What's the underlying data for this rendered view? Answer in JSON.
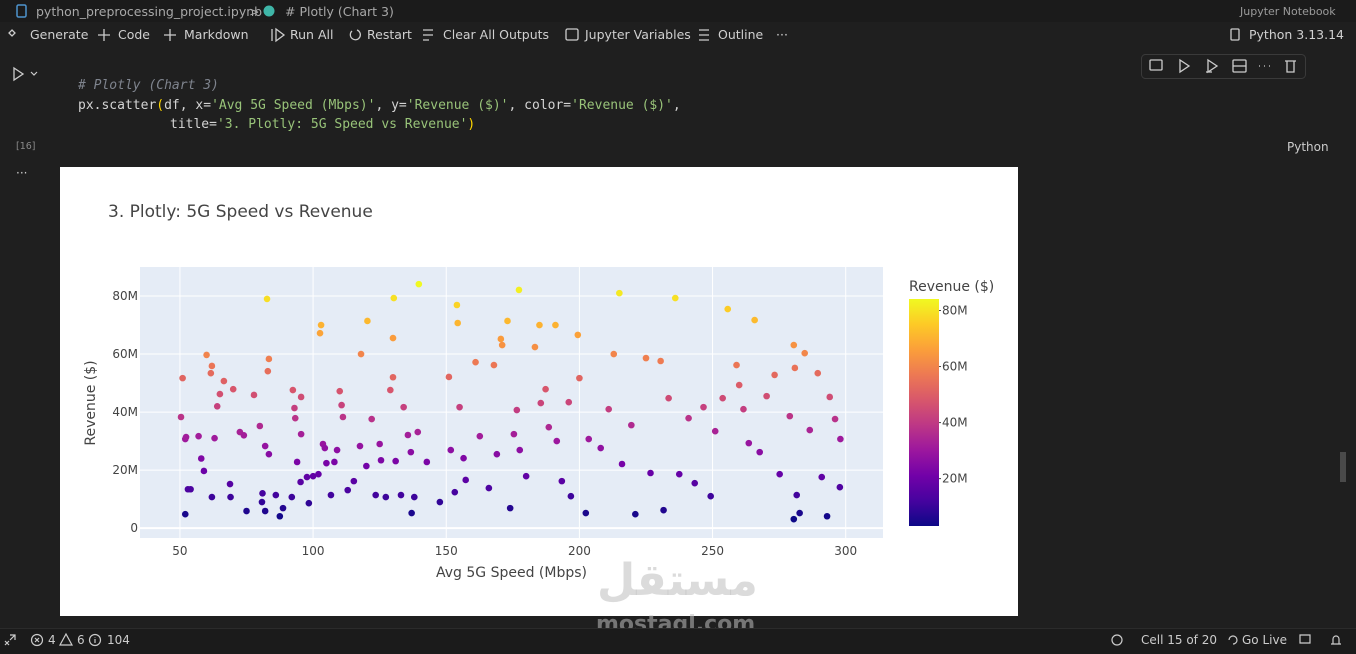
{
  "tab": {
    "file": "python_preprocessing_project.ipynb",
    "separator": ">",
    "cell": "# Plotly (Chart 3)",
    "app": "Jupyter Notebook"
  },
  "toolbar": {
    "items": [
      "Generate",
      "Code",
      "Markdown",
      "Run All",
      "Restart",
      "Clear All Outputs",
      "Jupyter Variables",
      "Outline",
      "···"
    ],
    "kernel": "Python 3.13.14"
  },
  "code": {
    "lines": [
      [
        {
          "text": "# Plotly (Chart 3)",
          "color": "#7f848e"
        }
      ],
      [
        {
          "text": "px.scatter",
          "color": "#d4d4d4"
        },
        {
          "text": "(",
          "color": "#ffd700"
        },
        {
          "text": "df, x=",
          "color": "#d4d4d4"
        },
        {
          "text": "'Avg 5G Speed (Mbps)'",
          "color": "#98c379"
        },
        {
          "text": ", y=",
          "color": "#d4d4d4"
        },
        {
          "text": "'Revenue ($)'",
          "color": "#98c379"
        },
        {
          "text": ", color=",
          "color": "#d4d4d4"
        },
        {
          "text": "'Revenue ($)'",
          "color": "#98c379"
        },
        {
          "text": ",",
          "color": "#d4d4d4"
        }
      ],
      [
        {
          "text": "title=",
          "color": "#d4d4d4"
        },
        {
          "text": "'3. Plotly: 5G Speed vs Revenue'",
          "color": "#98c379"
        },
        {
          "text": ")",
          "color": "#ffd700"
        }
      ]
    ]
  },
  "cell": {
    "count": "[16]",
    "language": "Python",
    "more": "···"
  },
  "chart_data": {
    "type": "scatter",
    "title": "3. Plotly: 5G Speed vs Revenue",
    "x_label": "Avg 5G Speed (Mbps)",
    "y_label": "Revenue ($)",
    "xlim": [
      35,
      314
    ],
    "xticks": [
      50,
      100,
      150,
      200,
      250,
      300
    ],
    "ylim": [
      -3400000.0,
      90000000.0
    ],
    "yticks": [
      0,
      {
        "value": 20000000,
        "label": "20M"
      },
      {
        "value": 40000000,
        "label": "40M"
      },
      {
        "value": 60000000,
        "label": "60M"
      },
      {
        "value": 80000000,
        "label": "80M"
      }
    ],
    "grid": true,
    "colorscale": [
      "#0d0887",
      "#46039f",
      "#7201a8",
      "#9c179e",
      "#bd3786",
      "#d8576b",
      "#ed7953",
      "#fb9f3a",
      "#fdca26",
      "#f0f921"
    ],
    "colorbar": {
      "title": "Revenue ($)",
      "lim": [
        3100000.0,
        84100000.0
      ],
      "ticks": [
        {
          "value": 20000000,
          "label": "20M"
        },
        {
          "value": 40000000,
          "label": "40M"
        },
        {
          "value": 60000000,
          "label": "60M"
        },
        {
          "value": 80000000,
          "label": "80M"
        }
      ]
    },
    "x": [
      50.4,
      51,
      52,
      52.3,
      53,
      54,
      52,
      57,
      58,
      59,
      60,
      62,
      61.6,
      62,
      63,
      64,
      65,
      66.5,
      68.8,
      69,
      70,
      72.5,
      74,
      75,
      77.8,
      80,
      80.8,
      81,
      82,
      82.7,
      83,
      83.4,
      83.4,
      82,
      86,
      87.5,
      88.7,
      92,
      92.4,
      93,
      93.3,
      95.5,
      95.5,
      94,
      95.3,
      97.7,
      98.4,
      100,
      102,
      102.6,
      103,
      103.7,
      104.4,
      105,
      106.7,
      108,
      109,
      110,
      110.7,
      111.2,
      113,
      115.3,
      117.6,
      118,
      120,
      120.4,
      122,
      123.5,
      125,
      125.5,
      127.3,
      129,
      130,
      130,
      130.3,
      131,
      133,
      134,
      135.6,
      136.7,
      137,
      138,
      139.3,
      139.7,
      142.7,
      147.6,
      151,
      151.7,
      153.2,
      154,
      154.3,
      155,
      156.5,
      157.3,
      161,
      162.6,
      166,
      167.9,
      169,
      170.5,
      171,
      173,
      174,
      175.4,
      176.5,
      177.3,
      177.6,
      180,
      183.3,
      185,
      185.5,
      187.3,
      188.5,
      191,
      191.5,
      193.4,
      196,
      196.8,
      199.4,
      200,
      202.4,
      203.5,
      208,
      211,
      212.9,
      215,
      216,
      219.5,
      221,
      225,
      226.7,
      230.5,
      231.6,
      233.5,
      236,
      237.5,
      241,
      243.3,
      246.6,
      249.3,
      251,
      253.8,
      255.7,
      259,
      260,
      261.6,
      263.6,
      265.8,
      267.7,
      270.3,
      273.3,
      275.2,
      279,
      280.5,
      280.9,
      281.6,
      280.5,
      282.7,
      284.6,
      286.5,
      289.5,
      291,
      293,
      294,
      296,
      297.8,
      298
    ],
    "values": [
      38300000.0,
      51700000.0,
      30700000.0,
      31400000.0,
      13400000.0,
      13400000.0,
      4800000.0,
      31700000.0,
      24000000.0,
      19700000.0,
      59700000.0,
      55900000.0,
      53400000.0,
      10700000.0,
      31000000.0,
      42000000.0,
      46200000.0,
      50700000.0,
      15200000.0,
      10700000.0,
      47900000.0,
      33100000.0,
      32000000.0,
      5900000.0,
      45900000.0,
      35200000.0,
      9000000.0,
      12000000.0,
      5900000.0,
      79000000.0,
      54100000.0,
      58300000.0,
      25500000.0,
      28300000.0,
      11400000.0,
      4100000.0,
      6900000.0,
      10700000.0,
      47600000.0,
      41400000.0,
      37900000.0,
      45200000.0,
      32400000.0,
      22800000.0,
      15900000.0,
      17600000.0,
      8600000.0,
      17900000.0,
      18600000.0,
      67200000.0,
      70000000.0,
      29000000.0,
      27600000.0,
      22400000.0,
      11400000.0,
      22800000.0,
      26900000.0,
      47200000.0,
      42400000.0,
      38300000.0,
      13100000.0,
      16200000.0,
      28300000.0,
      60000000.0,
      21400000.0,
      71400000.0,
      37600000.0,
      11400000.0,
      29000000.0,
      23400000.0,
      10700000.0,
      47600000.0,
      65500000.0,
      52000000.0,
      79300000.0,
      23100000.0,
      11400000.0,
      41700000.0,
      32100000.0,
      26200000.0,
      5200000.0,
      10700000.0,
      33100000.0,
      84100000.0,
      22800000.0,
      9000000.0,
      52100000.0,
      26900000.0,
      12400000.0,
      76900000.0,
      70700000.0,
      41700000.0,
      24100000.0,
      16600000.0,
      57200000.0,
      31700000.0,
      13800000.0,
      56200000.0,
      25500000.0,
      65200000.0,
      63100000.0,
      71400000.0,
      6900000.0,
      32400000.0,
      40700000.0,
      82100000.0,
      26900000.0,
      17900000.0,
      62400000.0,
      70000000.0,
      43100000.0,
      47900000.0,
      34800000.0,
      70000000.0,
      30000000.0,
      16200000.0,
      43400000.0,
      11000000.0,
      66600000.0,
      51700000.0,
      5200000.0,
      30700000.0,
      27600000.0,
      41000000.0,
      60000000.0,
      81000000.0,
      22100000.0,
      35500000.0,
      4800000.0,
      58600000.0,
      19000000.0,
      57600000.0,
      6200000.0,
      44800000.0,
      79300000.0,
      18600000.0,
      37900000.0,
      15500000.0,
      41700000.0,
      11000000.0,
      33400000.0,
      44800000.0,
      75500000.0,
      56200000.0,
      49300000.0,
      41000000.0,
      29300000.0,
      71700000.0,
      26200000.0,
      45500000.0,
      52800000.0,
      18600000.0,
      38600000.0,
      63100000.0,
      55200000.0,
      11400000.0,
      3100000.0,
      5200000.0,
      60300000.0,
      33800000.0,
      53400000.0,
      17600000.0,
      4100000.0,
      45200000.0,
      37600000.0,
      14100000.0,
      30700000.0
    ]
  },
  "status_bar": {
    "errors": "4",
    "warnings": "6",
    "infos": "104",
    "cell": "Cell 15 of 20",
    "live": "Go Live"
  },
  "watermark": {
    "arabic": "مستقل",
    "site": "mostaql.com"
  }
}
